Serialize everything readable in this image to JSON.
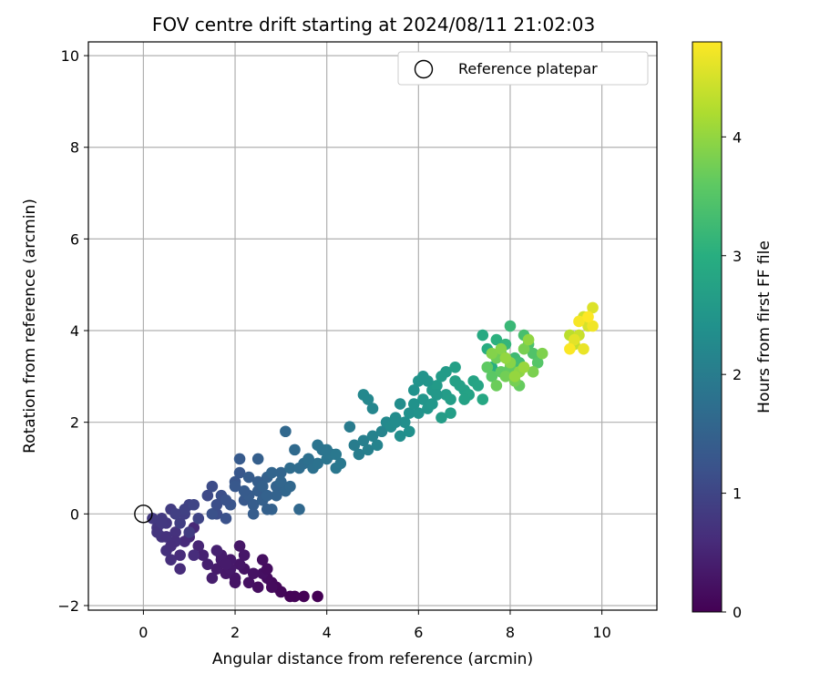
{
  "chart_data": {
    "type": "scatter",
    "title": "FOV centre drift starting at 2024/08/11 21:02:03",
    "xlabel": "Angular distance from reference (arcmin)",
    "ylabel": "Rotation from reference (arcmin)",
    "xlim": [
      -1.2,
      11.2
    ],
    "ylim": [
      -2.1,
      10.3
    ],
    "xticks": [
      0,
      2,
      4,
      6,
      8,
      10
    ],
    "yticks": [
      -2,
      0,
      2,
      4,
      6,
      8,
      10
    ],
    "grid": true,
    "legend": {
      "position": "top-right",
      "entries": [
        "Reference platepar"
      ]
    },
    "reference_point": {
      "name": "Reference platepar",
      "x": 0,
      "y": 0
    },
    "colorbar": {
      "label": "Hours from first FF file",
      "colormap": "viridis",
      "range": [
        0,
        4.8
      ],
      "ticks": [
        0,
        1,
        2,
        3,
        4
      ]
    },
    "series": [
      {
        "x": [
          3.8,
          3.5,
          3.3,
          3.0,
          2.9,
          2.8,
          2.7,
          3.2,
          3.0,
          2.5,
          2.6,
          2.3,
          2.2,
          2.0,
          2.1,
          1.8,
          1.9,
          1.6,
          1.7,
          1.5,
          1.4,
          2.4,
          2.1,
          1.9,
          2.6,
          2.0,
          1.7,
          1.6,
          2.8,
          2.2,
          2.7,
          1.8
        ],
        "y": [
          -1.8,
          -1.8,
          -1.8,
          -1.7,
          -1.6,
          -1.5,
          -1.4,
          -1.8,
          -1.7,
          -1.6,
          -1.3,
          -1.5,
          -1.2,
          -1.4,
          -1.1,
          -1.3,
          -1.0,
          -1.2,
          -0.9,
          -1.4,
          -1.1,
          -1.3,
          -0.7,
          -1.2,
          -1.0,
          -1.5,
          -1.0,
          -0.8,
          -1.6,
          -0.9,
          -1.2,
          -1.1
        ],
        "t": [
          0.0,
          0.02,
          0.05,
          0.07,
          0.1,
          0.12,
          0.15,
          0.04,
          0.08,
          0.18,
          0.2,
          0.22,
          0.25,
          0.28,
          0.3,
          0.32,
          0.34,
          0.36,
          0.38,
          0.4,
          0.42,
          0.24,
          0.3,
          0.33,
          0.19,
          0.27,
          0.38,
          0.44,
          0.14,
          0.31,
          0.17,
          0.36
        ]
      },
      {
        "x": [
          1.3,
          1.2,
          1.0,
          0.9,
          0.8,
          1.1,
          0.6,
          0.5,
          0.7,
          0.4,
          0.3,
          0.5,
          0.2,
          0.4,
          0.6,
          0.8,
          0.9,
          1.0,
          0.3,
          0.7,
          1.1,
          0.5,
          0.6,
          0.8,
          1.0,
          1.2,
          0.4,
          0.9,
          0.7
        ],
        "y": [
          -0.9,
          -0.7,
          -0.5,
          -0.6,
          -1.2,
          -0.9,
          -1.0,
          -0.8,
          -0.4,
          -0.5,
          -0.3,
          -0.2,
          -0.1,
          -0.1,
          0.1,
          -0.2,
          0.0,
          0.2,
          -0.4,
          -0.6,
          -0.3,
          -0.5,
          -0.7,
          -0.9,
          -0.4,
          -0.1,
          -0.2,
          0.1,
          0.0
        ],
        "t": [
          0.46,
          0.5,
          0.55,
          0.58,
          0.6,
          0.62,
          0.65,
          0.68,
          0.7,
          0.72,
          0.75,
          0.78,
          0.8,
          0.82,
          0.85,
          0.88,
          0.9,
          0.95,
          0.74,
          0.66,
          0.56,
          0.7,
          0.64,
          0.6,
          0.86,
          0.98,
          0.8,
          0.93,
          0.92
        ]
      },
      {
        "x": [
          1.1,
          1.4,
          1.5,
          1.6,
          1.7,
          1.5,
          1.8,
          1.9,
          2.0,
          2.1,
          2.2,
          2.1,
          2.3,
          2.4,
          2.5,
          2.6,
          2.7,
          2.8,
          2.9,
          3.0,
          3.1,
          3.2,
          2.5,
          2.7,
          2.9,
          2.2,
          2.4,
          2.6,
          2.8,
          2.0,
          2.6,
          3.0,
          3.4,
          2.3,
          2.5,
          2.7,
          1.6,
          1.8
        ],
        "y": [
          0.2,
          0.4,
          0.6,
          0.0,
          0.4,
          0.0,
          -0.1,
          0.2,
          0.7,
          0.9,
          0.3,
          1.2,
          0.4,
          0.2,
          0.5,
          0.3,
          0.8,
          0.1,
          0.6,
          0.9,
          0.5,
          0.6,
          0.7,
          0.1,
          0.4,
          0.5,
          0.0,
          0.6,
          0.9,
          0.6,
          0.3,
          0.7,
          0.1,
          0.8,
          1.2,
          0.4,
          0.2,
          0.3
        ],
        "t": [
          1.0,
          1.05,
          1.1,
          1.12,
          1.15,
          1.18,
          1.2,
          1.25,
          1.28,
          1.3,
          1.33,
          1.35,
          1.38,
          1.4,
          1.42,
          1.45,
          1.48,
          1.5,
          1.52,
          1.55,
          1.58,
          1.6,
          1.43,
          1.47,
          1.51,
          1.36,
          1.41,
          1.49,
          1.56,
          1.32,
          1.46,
          1.57,
          1.62,
          1.39,
          1.44,
          1.5,
          1.14,
          1.22
        ]
      },
      {
        "x": [
          3.1,
          3.3,
          3.2,
          3.5,
          3.6,
          3.7,
          3.8,
          3.9,
          4.0,
          4.1,
          4.2,
          4.3,
          3.4,
          3.6,
          4.0,
          4.2,
          3.8,
          4.5,
          4.6,
          4.7,
          4.8,
          4.9,
          5.0,
          5.1,
          5.2,
          4.9,
          5.0,
          4.8
        ],
        "y": [
          1.8,
          1.4,
          1.0,
          1.1,
          1.2,
          1.0,
          1.1,
          1.4,
          1.2,
          1.3,
          1.0,
          1.1,
          1.0,
          1.2,
          1.4,
          1.3,
          1.5,
          1.9,
          1.5,
          1.3,
          1.6,
          1.4,
          1.7,
          1.5,
          1.8,
          2.5,
          2.3,
          2.6
        ],
        "t": [
          1.62,
          1.65,
          1.68,
          1.72,
          1.75,
          1.78,
          1.8,
          1.82,
          1.85,
          1.88,
          1.9,
          1.92,
          1.7,
          1.76,
          1.86,
          1.91,
          1.83,
          1.98,
          2.0,
          2.02,
          2.05,
          2.08,
          2.1,
          2.12,
          2.15,
          2.2,
          2.18,
          2.22
        ]
      },
      {
        "x": [
          5.3,
          5.4,
          5.5,
          5.6,
          5.7,
          5.8,
          5.9,
          6.0,
          6.1,
          6.2,
          6.3,
          6.4,
          6.5,
          6.6,
          6.7,
          6.8,
          5.6,
          5.8,
          6.0,
          6.2,
          6.4,
          6.6,
          6.8,
          7.0,
          7.1,
          7.2,
          7.3,
          7.4,
          5.5,
          5.9,
          6.3,
          6.7,
          7.0,
          6.9,
          6.5,
          6.1
        ],
        "y": [
          2.0,
          1.9,
          2.1,
          2.4,
          2.0,
          2.2,
          2.7,
          2.9,
          2.5,
          2.3,
          2.7,
          2.8,
          3.0,
          2.6,
          2.5,
          2.9,
          1.7,
          1.8,
          2.2,
          2.9,
          2.6,
          3.1,
          3.2,
          2.7,
          2.6,
          2.9,
          2.8,
          2.5,
          2.0,
          2.4,
          2.4,
          2.2,
          2.5,
          2.8,
          2.1,
          3.0
        ],
        "t": [
          2.25,
          2.28,
          2.3,
          2.33,
          2.36,
          2.4,
          2.42,
          2.45,
          2.48,
          2.5,
          2.55,
          2.58,
          2.6,
          2.62,
          2.65,
          2.7,
          2.34,
          2.39,
          2.44,
          2.49,
          2.54,
          2.6,
          2.68,
          2.72,
          2.75,
          2.78,
          2.8,
          2.85,
          2.31,
          2.43,
          2.52,
          2.66,
          2.74,
          2.71,
          2.63,
          2.47
        ]
      },
      {
        "x": [
          7.4,
          7.5,
          7.6,
          7.7,
          7.8,
          7.9,
          8.0,
          8.1,
          8.2,
          8.3,
          8.4,
          8.5,
          8.6,
          7.6,
          7.8,
          8.0,
          8.2,
          7.5,
          7.7,
          7.9,
          8.1,
          8.3,
          8.5,
          8.7,
          7.6,
          7.8,
          8.0,
          8.2,
          8.4,
          7.9,
          8.1,
          8.3,
          7.5,
          7.7
        ],
        "y": [
          3.9,
          3.6,
          3.2,
          3.8,
          3.5,
          3.7,
          4.1,
          3.4,
          3.3,
          3.9,
          3.7,
          3.5,
          3.3,
          3.0,
          3.1,
          3.2,
          2.8,
          3.2,
          3.4,
          3.0,
          2.9,
          3.6,
          3.1,
          3.5,
          3.5,
          3.6,
          3.3,
          3.1,
          3.8,
          3.4,
          3.0,
          3.2,
          3.2,
          2.8
        ],
        "t": [
          2.9,
          2.95,
          3.0,
          3.05,
          3.1,
          3.15,
          3.2,
          3.25,
          3.3,
          3.35,
          3.4,
          3.45,
          3.5,
          3.55,
          3.6,
          3.62,
          3.65,
          3.7,
          3.72,
          3.75,
          3.78,
          3.8,
          3.82,
          3.85,
          3.88,
          3.9,
          3.92,
          3.95,
          3.98,
          4.0,
          4.02,
          4.05,
          3.6,
          3.7
        ]
      },
      {
        "x": [
          9.3,
          9.4,
          9.5,
          9.6,
          9.7,
          9.8,
          9.4,
          9.6,
          9.8,
          9.5,
          9.3,
          9.7
        ],
        "y": [
          3.9,
          3.7,
          3.9,
          4.3,
          4.1,
          4.5,
          3.8,
          3.6,
          4.1,
          4.2,
          3.6,
          4.3
        ],
        "t": [
          4.3,
          4.35,
          4.4,
          4.45,
          4.5,
          4.55,
          4.6,
          4.65,
          4.7,
          4.75,
          4.78,
          4.8
        ]
      }
    ]
  }
}
